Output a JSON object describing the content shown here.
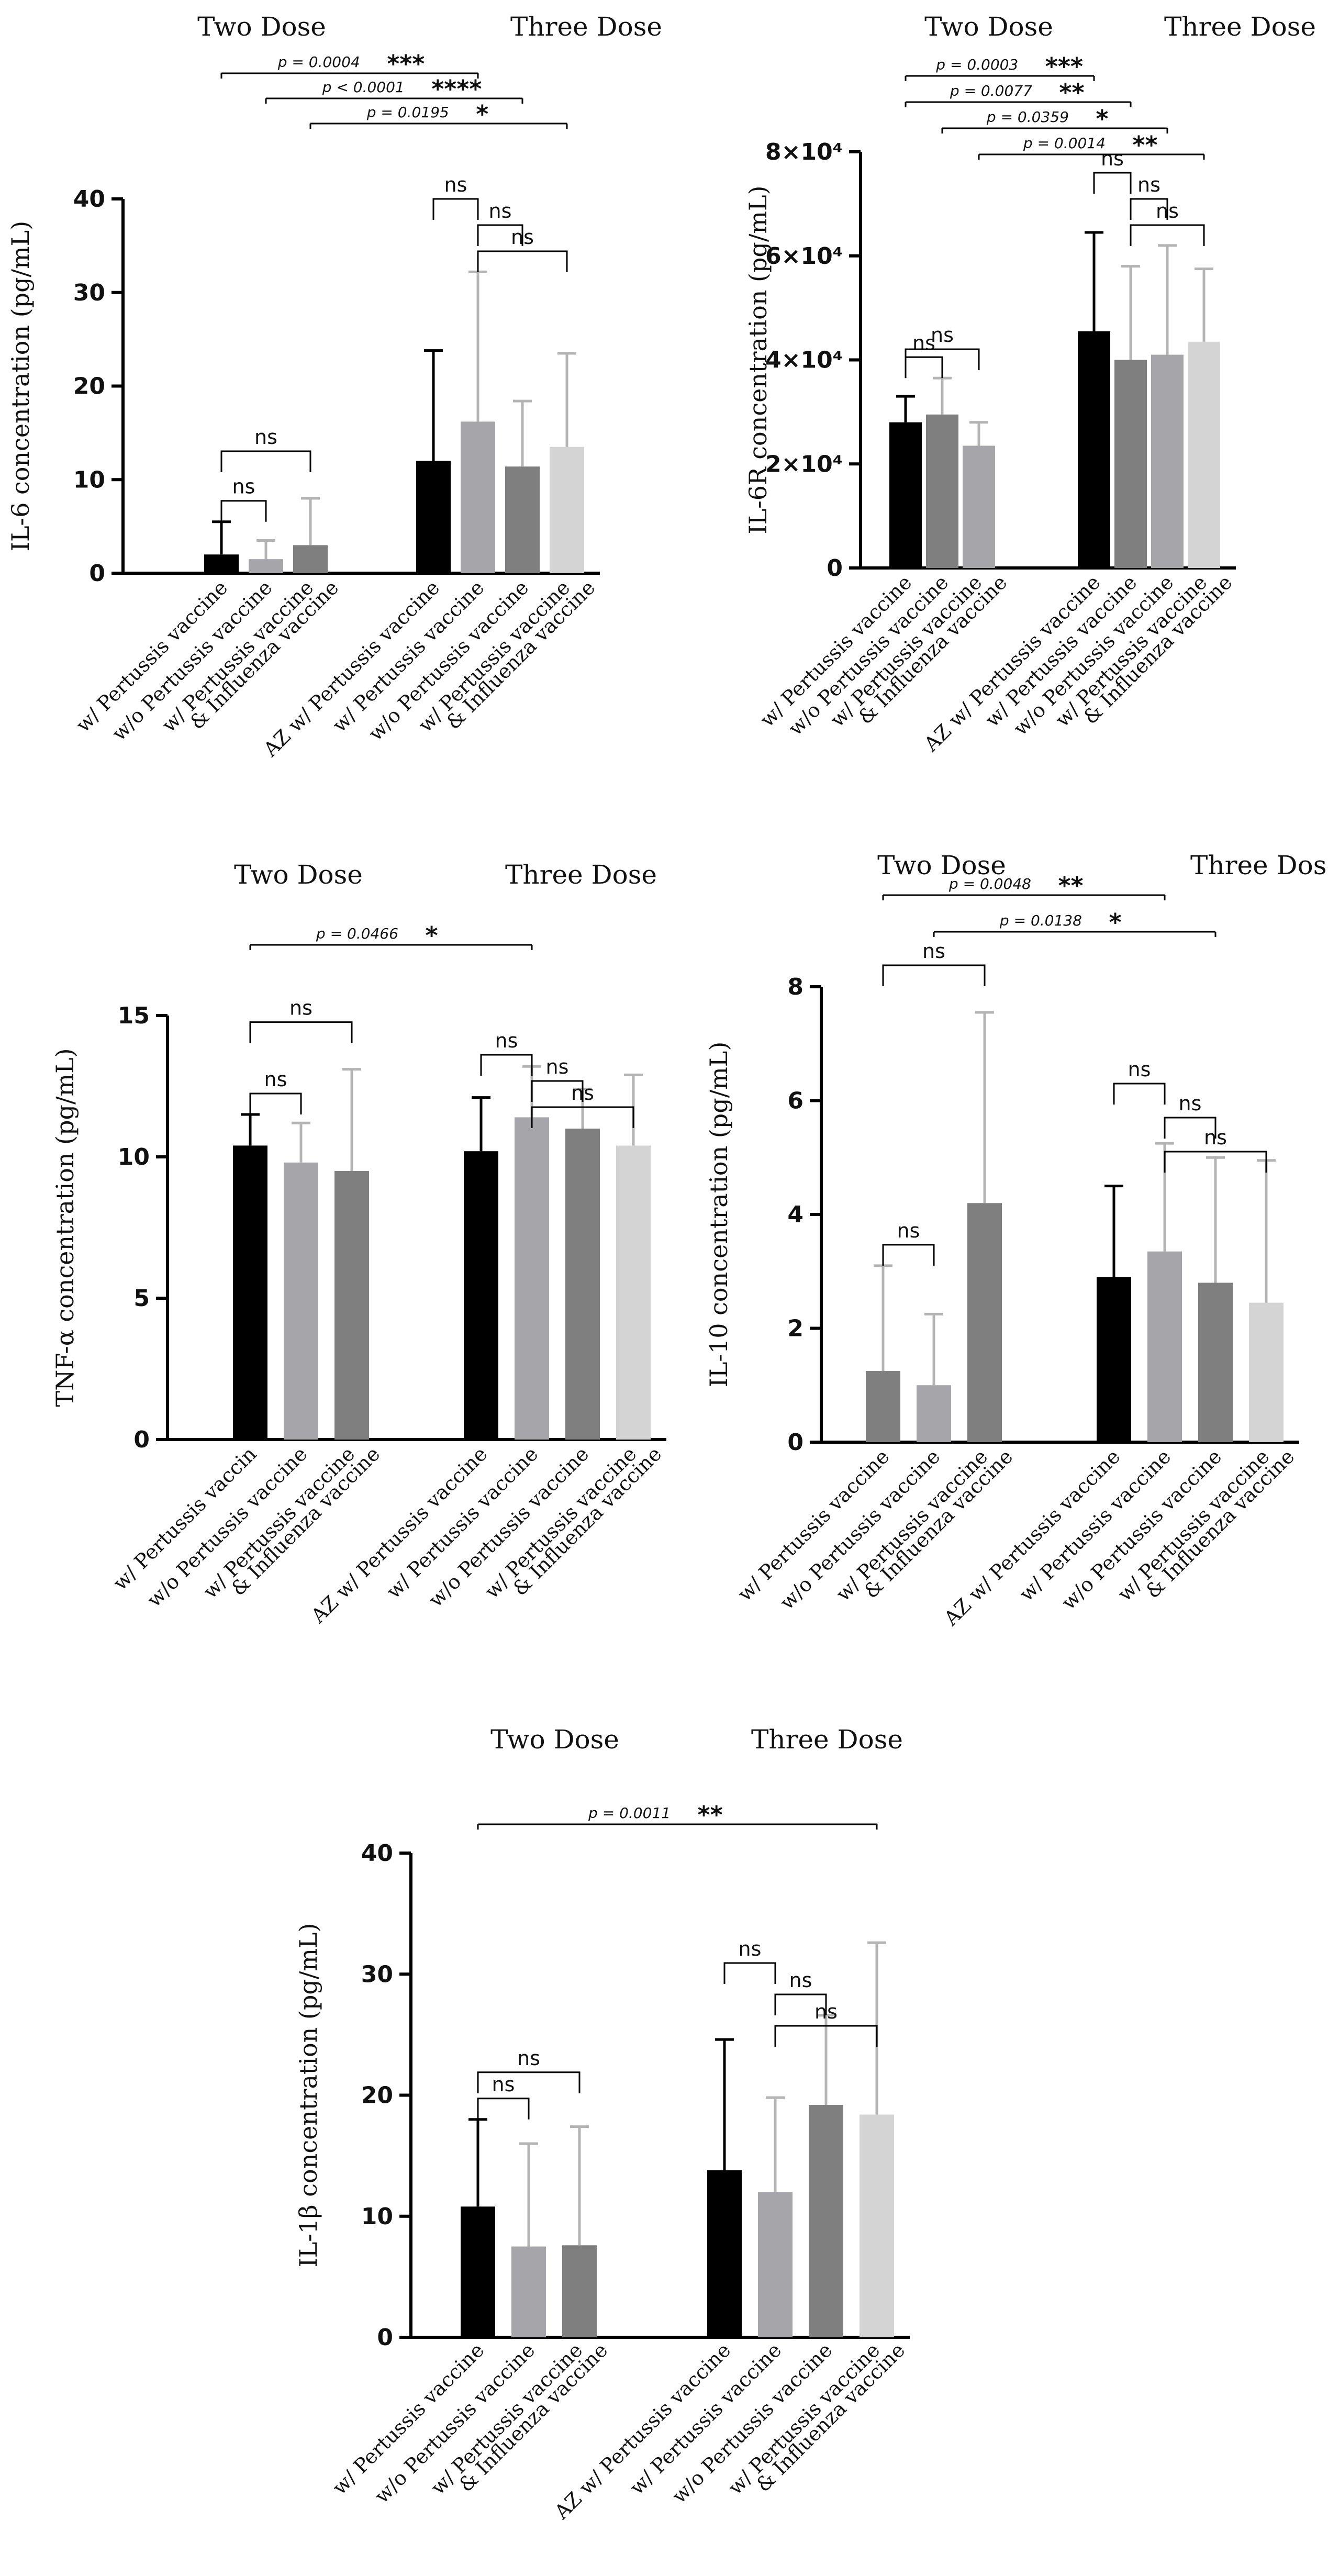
{
  "colors": {
    "black": "#000000",
    "gray_light": "#a5a5aa",
    "gray_dark": "#7f7f7f",
    "gray_pale": "#d4d4d4",
    "error_light": "#b4b4b4"
  },
  "chart_data": [
    {
      "id": "il6",
      "type": "bar",
      "ylabel": "IL-6 concentration (pg/mL)",
      "ylim": [
        0,
        40
      ],
      "yticks": [
        0,
        10,
        20,
        30,
        40
      ],
      "ytick_labels": [
        "0",
        "10",
        "20",
        "30",
        "40"
      ],
      "groups": [
        "Two Dose",
        "Three Dose"
      ],
      "categories": [
        "w/ Pertussis vaccine",
        "w/o Pertussis vaccine",
        "w/ Pertussis vaccine",
        "& Influenza vaccine",
        "AZ w/ Pertussis vaccine",
        "w/ Pertussis vaccine",
        "w/o Pertussis vaccine",
        "w/ Pertussis vaccine",
        "& Influenza vaccine"
      ],
      "bars": [
        {
          "label": "w/ Pertussis vaccine",
          "group": "Two Dose",
          "value": 2.0,
          "error": 3.5,
          "color": "#000000"
        },
        {
          "label": "w/o Pertussis vaccine",
          "group": "Two Dose",
          "value": 1.5,
          "error": 2.0,
          "color": "#a5a5aa"
        },
        {
          "label": "w/ Pertussis vaccine & Influenza vaccine",
          "group": "Two Dose",
          "value": 3.0,
          "error": 5.0,
          "color": "#7f7f7f"
        },
        {
          "label": "AZ w/ Pertussis vaccine",
          "group": "Three Dose",
          "value": 12.0,
          "error": 11.8,
          "color": "#000000"
        },
        {
          "label": "w/ Pertussis vaccine",
          "group": "Three Dose",
          "value": 16.2,
          "error": 16.0,
          "color": "#a5a5aa"
        },
        {
          "label": "w/o Pertussis vaccine",
          "group": "Three Dose",
          "value": 11.4,
          "error": 7.0,
          "color": "#7f7f7f"
        },
        {
          "label": "w/ Pertussis vaccine & Influenza vaccine",
          "group": "Three Dose",
          "value": 13.5,
          "error": 10.0,
          "color": "#d4d4d4"
        }
      ],
      "annotations": [
        {
          "type": "ns",
          "bars": [
            0,
            1
          ],
          "star": "",
          "p": "",
          "label": "ns"
        },
        {
          "type": "ns",
          "bars": [
            0,
            2
          ],
          "star": "",
          "p": "",
          "label": "ns"
        },
        {
          "type": "ns",
          "bars": [
            3,
            4
          ],
          "star": "",
          "p": "",
          "label": "ns"
        },
        {
          "type": "ns",
          "bars": [
            4,
            5
          ],
          "star": "",
          "p": "",
          "label": "ns"
        },
        {
          "type": "ns",
          "bars": [
            4,
            6
          ],
          "star": "",
          "p": "",
          "label": "ns"
        },
        {
          "type": "sig",
          "bars": [
            0,
            4
          ],
          "star": "***",
          "p": "p = 0.0004"
        },
        {
          "type": "sig",
          "bars": [
            1,
            5
          ],
          "star": "****",
          "p": "p < 0.0001"
        },
        {
          "type": "sig",
          "bars": [
            2,
            6
          ],
          "star": "*",
          "p": "p = 0.0195"
        }
      ]
    },
    {
      "id": "il6r",
      "type": "bar",
      "ylabel": "IL-6R concentration (pg/mL)",
      "ylim": [
        0,
        80000
      ],
      "yticks": [
        0,
        20000,
        40000,
        60000,
        80000
      ],
      "ytick_labels": [
        "0",
        "2×10⁴",
        "4×10⁴",
        "6×10⁴",
        "8×10⁴"
      ],
      "groups": [
        "Two Dose",
        "Three Dose"
      ],
      "categories": [
        "w/ Pertussis vaccine",
        "w/o Pertussis vaccine",
        "w/ Pertussis vaccine",
        "& Influenza vaccine",
        "AZ w/ Pertussis vaccine",
        "w/ Pertussis vaccine",
        "w/o Pertussis vaccine",
        "w/ Pertussis vaccine",
        "& Influenza vaccine"
      ],
      "bars": [
        {
          "label": "w/ Pertussis vaccine",
          "group": "Two Dose",
          "value": 28000,
          "error": 5000,
          "color": "#000000"
        },
        {
          "label": "w/o Pertussis vaccine",
          "group": "Two Dose",
          "value": 29500,
          "error": 7000,
          "color": "#7f7f7f"
        },
        {
          "label": "w/ Pertussis vaccine & Influenza vaccine",
          "group": "Two Dose",
          "value": 23500,
          "error": 4500,
          "color": "#a5a5aa"
        },
        {
          "label": "AZ w/ Pertussis vaccine",
          "group": "Three Dose",
          "value": 45500,
          "error": 19000,
          "color": "#000000"
        },
        {
          "label": "w/ Pertussis vaccine",
          "group": "Three Dose",
          "value": 40000,
          "error": 18000,
          "color": "#7f7f7f"
        },
        {
          "label": "w/o Pertussis vaccine",
          "group": "Three Dose",
          "value": 41000,
          "error": 21000,
          "color": "#a5a5aa"
        },
        {
          "label": "w/ Pertussis vaccine & Influenza vaccine",
          "group": "Three Dose",
          "value": 43500,
          "error": 14000,
          "color": "#d4d4d4"
        }
      ],
      "annotations": [
        {
          "type": "ns",
          "bars": [
            0,
            1
          ],
          "star": "",
          "p": "",
          "label": "ns"
        },
        {
          "type": "ns",
          "bars": [
            0,
            2
          ],
          "star": "",
          "p": "",
          "label": "ns"
        },
        {
          "type": "ns",
          "bars": [
            3,
            4
          ],
          "star": "",
          "p": "",
          "label": "ns"
        },
        {
          "type": "ns",
          "bars": [
            4,
            5
          ],
          "star": "",
          "p": "",
          "label": "ns"
        },
        {
          "type": "ns",
          "bars": [
            4,
            6
          ],
          "star": "",
          "p": "",
          "label": "ns"
        },
        {
          "type": "sig",
          "bars": [
            0,
            3
          ],
          "star": "***",
          "p": "p = 0.0003"
        },
        {
          "type": "sig",
          "bars": [
            0,
            4
          ],
          "star": "**",
          "p": "p = 0.0077"
        },
        {
          "type": "sig",
          "bars": [
            1,
            5
          ],
          "star": "*",
          "p": "p = 0.0359"
        },
        {
          "type": "sig",
          "bars": [
            2,
            6
          ],
          "star": "**",
          "p": "p = 0.0014"
        }
      ]
    },
    {
      "id": "tnfa",
      "type": "bar",
      "ylabel": "TNF-α concentration (pg/mL)",
      "ylim": [
        0,
        15
      ],
      "yticks": [
        0,
        5,
        10,
        15
      ],
      "ytick_labels": [
        "0",
        "5",
        "10",
        "15"
      ],
      "groups": [
        "Two Dose",
        "Three Dose"
      ],
      "categories": [
        "w/ Pertussis vaccin",
        "w/o Pertussis vaccine",
        "w/ Pertussis vaccine",
        "& Influenza vaccine",
        "AZ w/ Pertussis vaccine",
        "w/ Pertussis vaccine",
        "w/o Pertussis vaccine",
        "w/ Pertussis vaccine",
        "& Influenza vaccine"
      ],
      "bars": [
        {
          "label": "w/ Pertussis vaccine",
          "group": "Two Dose",
          "value": 10.4,
          "error": 1.1,
          "color": "#000000"
        },
        {
          "label": "w/o Pertussis vaccine",
          "group": "Two Dose",
          "value": 9.8,
          "error": 1.4,
          "color": "#a5a5aa"
        },
        {
          "label": "w/ Pertussis vaccine & Influenza vaccine",
          "group": "Two Dose",
          "value": 9.5,
          "error": 3.6,
          "color": "#7f7f7f"
        },
        {
          "label": "AZ w/ Pertussis vaccine",
          "group": "Three Dose",
          "value": 10.2,
          "error": 1.9,
          "color": "#000000"
        },
        {
          "label": "w/ Pertussis vaccine",
          "group": "Three Dose",
          "value": 11.4,
          "error": 1.8,
          "color": "#a5a5aa"
        },
        {
          "label": "w/o Pertussis vaccine",
          "group": "Three Dose",
          "value": 11.0,
          "error": 1.4,
          "color": "#7f7f7f"
        },
        {
          "label": "w/ Pertussis vaccine & Influenza vaccine",
          "group": "Three Dose",
          "value": 10.4,
          "error": 2.5,
          "color": "#d4d4d4"
        }
      ],
      "annotations": [
        {
          "type": "ns",
          "bars": [
            0,
            1
          ],
          "star": "",
          "p": "",
          "label": "ns"
        },
        {
          "type": "ns",
          "bars": [
            0,
            2
          ],
          "star": "",
          "p": "",
          "label": "ns"
        },
        {
          "type": "ns",
          "bars": [
            3,
            4
          ],
          "star": "",
          "p": "",
          "label": "ns"
        },
        {
          "type": "ns",
          "bars": [
            4,
            5
          ],
          "star": "",
          "p": "",
          "label": "ns"
        },
        {
          "type": "ns",
          "bars": [
            4,
            6
          ],
          "star": "",
          "p": "",
          "label": "ns"
        },
        {
          "type": "sig",
          "bars": [
            0,
            4
          ],
          "star": "*",
          "p": "p = 0.0466"
        }
      ]
    },
    {
      "id": "il10",
      "type": "bar",
      "ylabel": "IL-10 concentration (pg/mL)",
      "ylim": [
        0,
        8
      ],
      "yticks": [
        0,
        2,
        4,
        6,
        8
      ],
      "ytick_labels": [
        "0",
        "2",
        "4",
        "6",
        "8"
      ],
      "groups": [
        "Two Dose",
        "Three Dose"
      ],
      "categories": [
        "w/ Pertussis vaccine",
        "w/o Pertussis vaccine",
        "w/ Pertussis vaccine",
        "& Influenza vaccine",
        "AZ w/ Pertussis vaccine",
        "w/ Pertussis vaccine",
        "w/o Pertussis vaccine",
        "w/ Pertussis vaccine",
        "& Influenza vaccine"
      ],
      "bars": [
        {
          "label": "w/ Pertussis vaccine",
          "group": "Two Dose",
          "value": 1.25,
          "error": 1.85,
          "color": "#7f7f7f"
        },
        {
          "label": "w/o Pertussis vaccine",
          "group": "Two Dose",
          "value": 1.0,
          "error": 1.25,
          "color": "#a5a5aa"
        },
        {
          "label": "w/ Pertussis vaccine & Influenza vaccine",
          "group": "Two Dose",
          "value": 4.2,
          "error": 3.35,
          "color": "#7f7f7f"
        },
        {
          "label": "AZ w/ Pertussis vaccine",
          "group": "Three Dose",
          "value": 2.9,
          "error": 1.6,
          "color": "#000000"
        },
        {
          "label": "w/ Pertussis vaccine",
          "group": "Three Dose",
          "value": 3.35,
          "error": 1.9,
          "color": "#a5a5aa"
        },
        {
          "label": "w/o Pertussis vaccine",
          "group": "Three Dose",
          "value": 2.8,
          "error": 2.2,
          "color": "#7f7f7f"
        },
        {
          "label": "w/ Pertussis vaccine & Influenza vaccine",
          "group": "Three Dose",
          "value": 2.45,
          "error": 2.5,
          "color": "#d4d4d4"
        }
      ],
      "annotations": [
        {
          "type": "ns",
          "bars": [
            0,
            1
          ],
          "star": "",
          "p": "",
          "label": "ns"
        },
        {
          "type": "ns",
          "bars": [
            0,
            2
          ],
          "star": "",
          "p": "",
          "label": "ns"
        },
        {
          "type": "ns",
          "bars": [
            3,
            4
          ],
          "star": "",
          "p": "",
          "label": "ns"
        },
        {
          "type": "ns",
          "bars": [
            4,
            5
          ],
          "star": "",
          "p": "",
          "label": "ns"
        },
        {
          "type": "ns",
          "bars": [
            4,
            6
          ],
          "star": "",
          "p": "",
          "label": "ns"
        },
        {
          "type": "sig",
          "bars": [
            0,
            4
          ],
          "star": "**",
          "p": "p = 0.0048"
        },
        {
          "type": "sig",
          "bars": [
            1,
            5
          ],
          "star": "*",
          "p": "p = 0.0138"
        }
      ]
    },
    {
      "id": "il1b",
      "type": "bar",
      "ylabel": "IL-1β concentration (pg/mL)",
      "ylim": [
        0,
        40
      ],
      "yticks": [
        0,
        10,
        20,
        30,
        40
      ],
      "ytick_labels": [
        "0",
        "10",
        "20",
        "30",
        "40"
      ],
      "groups": [
        "Two Dose",
        "Three Dose"
      ],
      "categories": [
        "w/ Pertussis vaccine",
        "w/o Pertussis vaccine",
        "w/ Pertussis vaccine",
        "& Influenza vaccine",
        "AZ w/ Pertussis vaccine",
        "w/ Pertussis vaccine",
        "w/o Pertussis vaccine",
        "w/ Pertussis vaccine",
        "& Influenza vaccine"
      ],
      "bars": [
        {
          "label": "w/ Pertussis vaccine",
          "group": "Two Dose",
          "value": 10.8,
          "error": 7.2,
          "color": "#000000"
        },
        {
          "label": "w/o Pertussis vaccine",
          "group": "Two Dose",
          "value": 7.5,
          "error": 8.5,
          "color": "#a5a5aa"
        },
        {
          "label": "w/ Pertussis vaccine & Influenza vaccine",
          "group": "Two Dose",
          "value": 7.6,
          "error": 9.8,
          "color": "#7f7f7f"
        },
        {
          "label": "AZ w/ Pertussis vaccine",
          "group": "Three Dose",
          "value": 13.8,
          "error": 10.8,
          "color": "#000000"
        },
        {
          "label": "w/ Pertussis vaccine",
          "group": "Three Dose",
          "value": 12.0,
          "error": 7.8,
          "color": "#a5a5aa"
        },
        {
          "label": "w/o Pertussis vaccine",
          "group": "Three Dose",
          "value": 19.2,
          "error": 7.4,
          "color": "#7f7f7f"
        },
        {
          "label": "w/ Pertussis vaccine & Influenza vaccine",
          "group": "Three Dose",
          "value": 18.4,
          "error": 14.2,
          "color": "#d4d4d4"
        }
      ],
      "annotations": [
        {
          "type": "ns",
          "bars": [
            0,
            1
          ],
          "star": "",
          "p": "",
          "label": "ns"
        },
        {
          "type": "ns",
          "bars": [
            0,
            2
          ],
          "star": "",
          "p": "",
          "label": "ns"
        },
        {
          "type": "ns",
          "bars": [
            3,
            4
          ],
          "star": "",
          "p": "",
          "label": "ns"
        },
        {
          "type": "ns",
          "bars": [
            4,
            5
          ],
          "star": "",
          "p": "",
          "label": "ns"
        },
        {
          "type": "ns",
          "bars": [
            4,
            6
          ],
          "star": "",
          "p": "",
          "label": "ns"
        },
        {
          "type": "sig",
          "bars": [
            0,
            6
          ],
          "star": "**",
          "p": "p = 0.0011"
        }
      ]
    }
  ]
}
